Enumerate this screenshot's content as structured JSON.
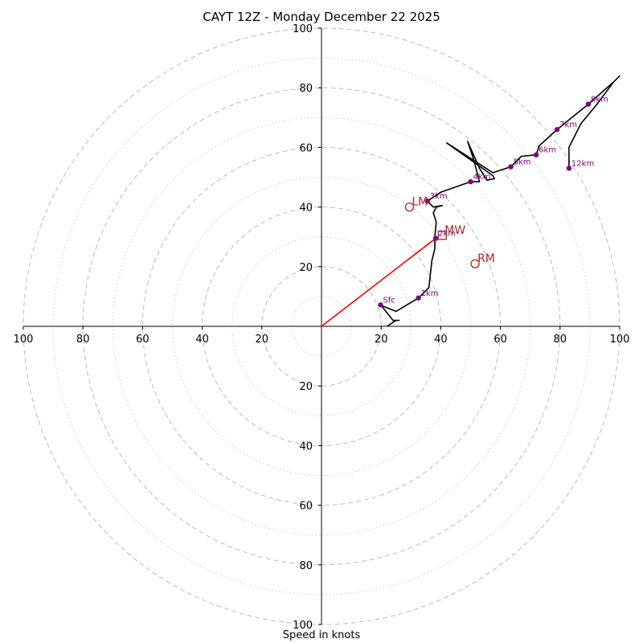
{
  "chart_data": {
    "type": "hodograph",
    "title": "CAYT 12Z - Monday December 22 2025",
    "xlabel": "Speed in knots",
    "max_speed": 100,
    "rings_major": [
      20,
      40,
      60,
      80,
      100
    ],
    "rings_minor": [
      10,
      30,
      50,
      70,
      90
    ],
    "axis_tick_labels": [
      "20",
      "40",
      "60",
      "80",
      "100"
    ],
    "colors": {
      "trace": "#000000",
      "height_marker": "#800080",
      "motion": "#b22222",
      "shear_vector": "#ff0000",
      "ring_major": "#bbbbbb",
      "ring_minor": "#cccccc"
    },
    "trace": [
      [
        22,
        0
      ],
      [
        25,
        2
      ],
      [
        26,
        2
      ],
      [
        24,
        2
      ],
      [
        20,
        7
      ],
      [
        25,
        5
      ],
      [
        30,
        8
      ],
      [
        32.5,
        9.5
      ],
      [
        36,
        13
      ],
      [
        37,
        22
      ],
      [
        38,
        26
      ],
      [
        38,
        30
      ],
      [
        38.5,
        35
      ],
      [
        37.5,
        38
      ],
      [
        38.5,
        40
      ],
      [
        40.5,
        40.5
      ],
      [
        37.5,
        40
      ],
      [
        35.5,
        42
      ],
      [
        40,
        45
      ],
      [
        50,
        48.5
      ],
      [
        53,
        48.5
      ],
      [
        51,
        56
      ],
      [
        49,
        62
      ],
      [
        53,
        53
      ],
      [
        55.5,
        49
      ],
      [
        58,
        49.5
      ],
      [
        57.5,
        50.5
      ],
      [
        42,
        61.5
      ],
      [
        57.5,
        51.5
      ],
      [
        63.5,
        53.5
      ],
      [
        67,
        57
      ],
      [
        72,
        57.5
      ],
      [
        73,
        60.5
      ],
      [
        79,
        66
      ],
      [
        89.5,
        74.5
      ],
      [
        98,
        82
      ],
      [
        100,
        84
      ],
      [
        98,
        82
      ],
      [
        92,
        74
      ],
      [
        87,
        68
      ],
      [
        84,
        62
      ],
      [
        83,
        60
      ],
      [
        83,
        53
      ]
    ],
    "height_markers": [
      {
        "label": "Sfc",
        "u": 19.8,
        "v": 7.2
      },
      {
        "label": "1km",
        "u": 32.5,
        "v": 9.5
      },
      {
        "label": "2km",
        "u": 38.3,
        "v": 29.5
      },
      {
        "label": "3km",
        "u": 35.5,
        "v": 42
      },
      {
        "label": "4km",
        "u": 50,
        "v": 48.5
      },
      {
        "label": "5km",
        "u": 63.5,
        "v": 53.5
      },
      {
        "label": "6km",
        "u": 72,
        "v": 57.5
      },
      {
        "label": "7km",
        "u": 79,
        "v": 66
      },
      {
        "label": "8km",
        "u": 89.5,
        "v": 74.5
      },
      {
        "label": "12km",
        "u": 83,
        "v": 53
      }
    ],
    "storm_motion": [
      {
        "label": "LM",
        "u": 29.5,
        "v": 40,
        "marker": "circle"
      },
      {
        "label": "RM",
        "u": 51.5,
        "v": 21,
        "marker": "circle"
      },
      {
        "label": "MW",
        "u": 40.5,
        "v": 30.5,
        "marker": "square"
      }
    ],
    "shear_vector": {
      "u0": 0,
      "v0": 0,
      "u1": 38.3,
      "v1": 29.5
    }
  }
}
